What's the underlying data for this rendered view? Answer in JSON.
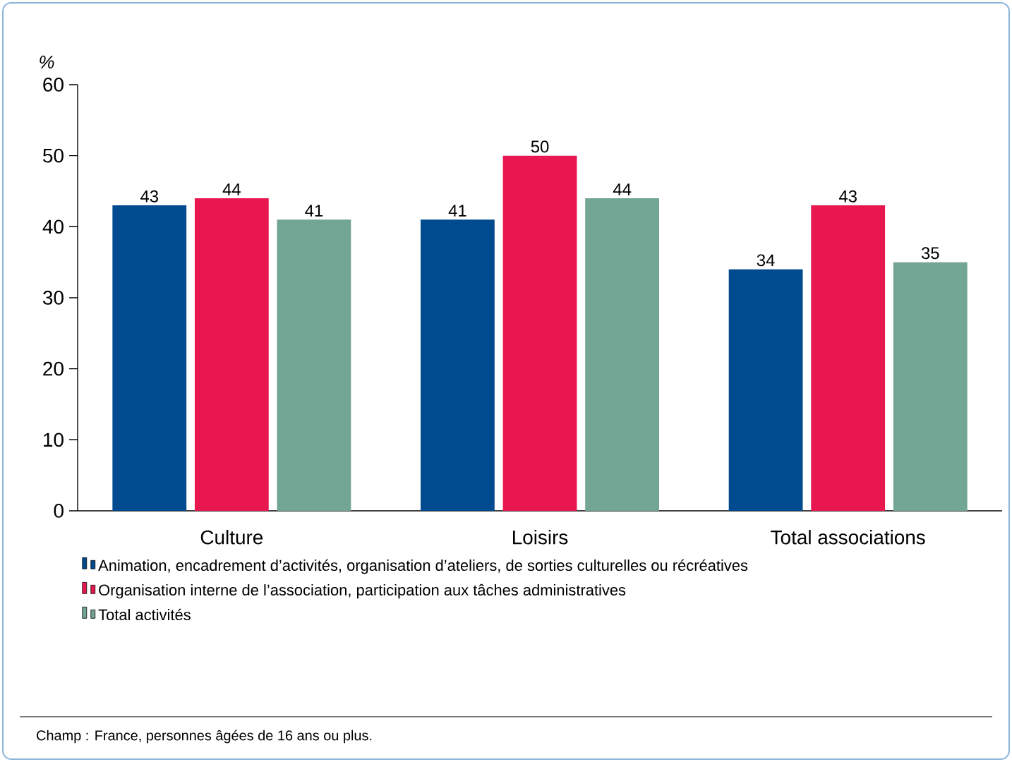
{
  "chart_data": {
    "type": "bar",
    "ylabel": "%",
    "categories": [
      "Culture",
      "Loisirs",
      "Total associations"
    ],
    "series": [
      {
        "name": "Animation, encadrement d’activités, organisation d’ateliers, de sorties culturelles ou récréatives",
        "color": "#004a8f",
        "values": [
          43,
          41,
          34
        ]
      },
      {
        "name": "Organisation interne de l’association, participation aux tâches administratives",
        "color": "#e8174f",
        "values": [
          44,
          50,
          43
        ]
      },
      {
        "name": "Total activités",
        "color": "#72a593",
        "values": [
          41,
          44,
          35
        ]
      }
    ],
    "ylim": [
      0,
      60
    ],
    "yticks": [
      0,
      10,
      20,
      30,
      40,
      50,
      60
    ],
    "grid": false,
    "legend": "bottom",
    "data_labels": true,
    "annotations": [
      "Champ : France, personnes âgées de 16 ans ou plus."
    ]
  }
}
